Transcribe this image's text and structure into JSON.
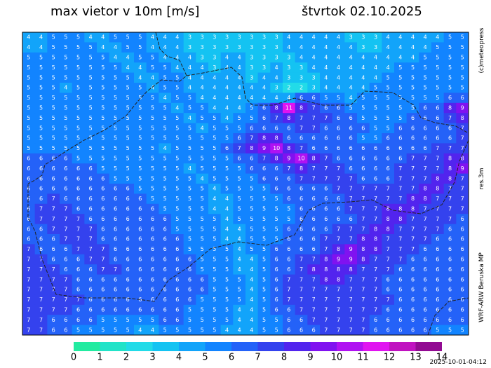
{
  "header": {
    "title": "max vietor v 10m [m/s]",
    "date": "štvrtok 02.10.2025"
  },
  "side": {
    "copyright": "(c)meteopress",
    "resolution": "res.3m",
    "model": "WRF-ARW Beruska MP"
  },
  "footer": {
    "timestamp": "2025-10-01-04:12"
  },
  "colorbar": {
    "ticks": [
      0,
      1,
      2,
      3,
      4,
      5,
      6,
      7,
      8,
      9,
      10,
      11,
      12,
      13,
      14
    ],
    "colors": [
      "#22eba0",
      "#22e3c8",
      "#22dbe8",
      "#14c3f2",
      "#12a4fa",
      "#1284ff",
      "#2462f8",
      "#3442ee",
      "#5224ee",
      "#8012f0",
      "#b012f2",
      "#e014f0",
      "#c012c0",
      "#920a92"
    ]
  },
  "grid": [
    [
      4,
      4,
      5,
      5,
      5,
      4,
      4,
      5,
      5,
      5,
      4,
      4,
      4,
      3,
      3,
      3,
      3,
      3,
      3,
      3,
      3,
      4,
      4,
      4,
      4,
      4,
      3,
      3,
      3,
      4,
      4,
      4,
      4,
      4,
      5,
      5
    ],
    [
      4,
      4,
      5,
      5,
      5,
      5,
      4,
      4,
      5,
      5,
      4,
      4,
      4,
      3,
      3,
      3,
      3,
      3,
      3,
      3,
      3,
      4,
      4,
      4,
      4,
      4,
      4,
      3,
      3,
      4,
      4,
      4,
      4,
      5,
      5,
      5
    ],
    [
      5,
      5,
      5,
      5,
      5,
      5,
      5,
      4,
      4,
      5,
      5,
      4,
      4,
      4,
      3,
      3,
      4,
      4,
      3,
      3,
      3,
      3,
      4,
      4,
      4,
      4,
      4,
      4,
      4,
      4,
      4,
      4,
      5,
      5,
      5,
      5
    ],
    [
      5,
      5,
      5,
      5,
      5,
      5,
      5,
      5,
      4,
      4,
      5,
      5,
      4,
      4,
      4,
      3,
      4,
      4,
      3,
      3,
      4,
      3,
      3,
      4,
      4,
      4,
      4,
      4,
      4,
      4,
      5,
      5,
      5,
      5,
      5,
      5
    ],
    [
      5,
      5,
      5,
      5,
      5,
      5,
      5,
      5,
      5,
      4,
      4,
      5,
      5,
      4,
      4,
      4,
      4,
      4,
      3,
      4,
      4,
      3,
      3,
      3,
      4,
      4,
      4,
      4,
      4,
      5,
      5,
      5,
      5,
      5,
      5,
      5
    ],
    [
      5,
      5,
      5,
      4,
      5,
      5,
      5,
      5,
      5,
      5,
      4,
      5,
      5,
      4,
      4,
      4,
      4,
      4,
      4,
      4,
      3,
      2,
      2,
      3,
      4,
      4,
      4,
      4,
      5,
      5,
      5,
      5,
      5,
      5,
      5,
      5
    ],
    [
      5,
      5,
      5,
      5,
      5,
      5,
      5,
      5,
      5,
      5,
      5,
      4,
      5,
      5,
      4,
      4,
      4,
      4,
      4,
      4,
      4,
      4,
      6,
      6,
      5,
      5,
      4,
      5,
      5,
      5,
      5,
      5,
      5,
      5,
      6,
      6
    ],
    [
      5,
      5,
      5,
      5,
      5,
      5,
      5,
      5,
      5,
      5,
      5,
      5,
      4,
      5,
      5,
      4,
      4,
      4,
      5,
      6,
      8,
      11,
      8,
      7,
      6,
      6,
      5,
      5,
      5,
      5,
      5,
      5,
      6,
      6,
      8,
      9
    ],
    [
      5,
      5,
      5,
      5,
      5,
      5,
      5,
      5,
      5,
      5,
      5,
      5,
      5,
      4,
      5,
      5,
      4,
      5,
      5,
      6,
      7,
      8,
      7,
      7,
      7,
      6,
      6,
      5,
      5,
      5,
      5,
      6,
      6,
      6,
      7,
      8
    ],
    [
      5,
      5,
      5,
      5,
      5,
      5,
      5,
      5,
      5,
      5,
      5,
      5,
      5,
      5,
      4,
      5,
      5,
      5,
      6,
      6,
      6,
      6,
      7,
      7,
      6,
      6,
      6,
      6,
      5,
      5,
      6,
      6,
      6,
      6,
      6,
      7
    ],
    [
      5,
      5,
      5,
      5,
      5,
      5,
      5,
      5,
      5,
      5,
      5,
      5,
      5,
      5,
      5,
      5,
      5,
      6,
      7,
      8,
      8,
      6,
      6,
      6,
      6,
      6,
      6,
      5,
      5,
      6,
      6,
      6,
      6,
      6,
      6,
      7
    ],
    [
      5,
      5,
      5,
      5,
      5,
      5,
      5,
      5,
      5,
      5,
      5,
      4,
      5,
      5,
      5,
      5,
      6,
      7,
      8,
      9,
      10,
      8,
      7,
      6,
      6,
      6,
      6,
      6,
      6,
      6,
      6,
      6,
      6,
      7,
      7,
      7
    ],
    [
      6,
      6,
      6,
      6,
      5,
      5,
      5,
      5,
      5,
      5,
      5,
      5,
      5,
      5,
      5,
      5,
      5,
      6,
      6,
      7,
      8,
      9,
      10,
      8,
      7,
      6,
      6,
      6,
      6,
      6,
      6,
      7,
      7,
      7,
      8,
      8
    ],
    [
      6,
      6,
      6,
      6,
      6,
      6,
      5,
      5,
      5,
      5,
      5,
      5,
      5,
      4,
      5,
      5,
      5,
      5,
      6,
      6,
      6,
      7,
      8,
      7,
      7,
      7,
      6,
      6,
      6,
      6,
      7,
      7,
      7,
      7,
      8,
      9
    ],
    [
      6,
      6,
      6,
      6,
      6,
      6,
      6,
      5,
      5,
      5,
      5,
      5,
      5,
      5,
      4,
      5,
      5,
      5,
      5,
      6,
      6,
      6,
      7,
      7,
      7,
      7,
      7,
      6,
      6,
      6,
      7,
      7,
      7,
      8,
      8,
      7
    ],
    [
      6,
      6,
      6,
      6,
      6,
      6,
      6,
      6,
      6,
      5,
      5,
      5,
      5,
      5,
      5,
      4,
      5,
      5,
      5,
      5,
      6,
      6,
      6,
      6,
      6,
      7,
      7,
      7,
      7,
      7,
      7,
      7,
      8,
      8,
      7,
      7
    ],
    [
      6,
      6,
      7,
      6,
      6,
      6,
      6,
      6,
      6,
      6,
      5,
      5,
      5,
      5,
      5,
      4,
      4,
      5,
      5,
      5,
      5,
      6,
      6,
      6,
      6,
      6,
      7,
      7,
      7,
      7,
      7,
      8,
      8,
      7,
      7,
      7
    ],
    [
      6,
      7,
      7,
      7,
      6,
      6,
      6,
      6,
      6,
      6,
      6,
      5,
      5,
      5,
      5,
      4,
      4,
      5,
      5,
      5,
      5,
      5,
      6,
      6,
      6,
      6,
      7,
      7,
      7,
      8,
      8,
      8,
      7,
      7,
      7,
      7
    ],
    [
      6,
      7,
      7,
      7,
      7,
      6,
      6,
      6,
      6,
      6,
      6,
      6,
      5,
      5,
      5,
      5,
      4,
      5,
      5,
      5,
      5,
      5,
      6,
      6,
      6,
      6,
      6,
      7,
      7,
      8,
      8,
      7,
      7,
      7,
      7,
      6
    ],
    [
      6,
      6,
      7,
      7,
      7,
      7,
      6,
      6,
      6,
      6,
      6,
      6,
      5,
      5,
      5,
      5,
      4,
      4,
      5,
      5,
      5,
      6,
      6,
      6,
      6,
      7,
      7,
      7,
      8,
      8,
      7,
      7,
      7,
      7,
      6,
      6
    ],
    [
      6,
      6,
      6,
      7,
      7,
      7,
      6,
      6,
      6,
      6,
      6,
      6,
      6,
      5,
      5,
      5,
      4,
      4,
      5,
      5,
      5,
      6,
      6,
      6,
      7,
      7,
      7,
      8,
      8,
      7,
      7,
      7,
      7,
      6,
      6,
      6
    ],
    [
      7,
      6,
      6,
      6,
      7,
      7,
      7,
      6,
      6,
      6,
      6,
      6,
      6,
      5,
      5,
      5,
      5,
      4,
      5,
      5,
      6,
      6,
      6,
      6,
      7,
      8,
      9,
      8,
      8,
      7,
      7,
      7,
      6,
      6,
      6,
      6
    ],
    [
      7,
      7,
      6,
      6,
      6,
      7,
      7,
      6,
      6,
      6,
      6,
      6,
      6,
      6,
      5,
      5,
      5,
      4,
      4,
      5,
      6,
      6,
      7,
      7,
      8,
      9,
      9,
      8,
      7,
      7,
      7,
      6,
      6,
      6,
      6,
      6
    ],
    [
      7,
      7,
      7,
      6,
      6,
      6,
      7,
      7,
      6,
      6,
      6,
      6,
      6,
      6,
      5,
      5,
      5,
      4,
      4,
      5,
      6,
      6,
      7,
      8,
      8,
      8,
      8,
      7,
      7,
      7,
      6,
      6,
      6,
      6,
      6,
      6
    ],
    [
      7,
      7,
      7,
      7,
      6,
      6,
      6,
      6,
      6,
      6,
      6,
      6,
      6,
      6,
      6,
      5,
      5,
      5,
      4,
      5,
      6,
      7,
      7,
      7,
      8,
      8,
      7,
      7,
      7,
      6,
      6,
      6,
      6,
      6,
      6,
      6
    ],
    [
      7,
      7,
      7,
      7,
      6,
      6,
      6,
      6,
      6,
      6,
      6,
      6,
      6,
      6,
      6,
      5,
      5,
      5,
      4,
      5,
      6,
      7,
      7,
      7,
      7,
      7,
      7,
      7,
      7,
      6,
      6,
      6,
      6,
      6,
      6,
      6
    ],
    [
      7,
      7,
      7,
      7,
      7,
      6,
      6,
      6,
      6,
      6,
      6,
      6,
      6,
      6,
      5,
      5,
      5,
      5,
      4,
      5,
      6,
      7,
      7,
      7,
      7,
      7,
      7,
      7,
      7,
      7,
      6,
      6,
      6,
      6,
      6,
      6
    ],
    [
      7,
      7,
      7,
      7,
      6,
      6,
      6,
      6,
      6,
      6,
      6,
      6,
      6,
      5,
      5,
      5,
      5,
      4,
      4,
      5,
      6,
      6,
      7,
      7,
      7,
      7,
      7,
      7,
      7,
      6,
      6,
      6,
      6,
      6,
      6,
      6
    ],
    [
      7,
      7,
      6,
      6,
      6,
      6,
      5,
      5,
      5,
      5,
      5,
      6,
      6,
      5,
      5,
      5,
      5,
      4,
      4,
      5,
      5,
      6,
      6,
      7,
      7,
      7,
      7,
      7,
      6,
      6,
      6,
      6,
      6,
      6,
      6,
      6
    ],
    [
      7,
      7,
      6,
      6,
      5,
      5,
      5,
      5,
      5,
      4,
      4,
      5,
      5,
      5,
      5,
      5,
      4,
      4,
      4,
      5,
      5,
      6,
      6,
      6,
      7,
      7,
      7,
      7,
      6,
      6,
      6,
      6,
      6,
      5,
      5,
      5
    ]
  ]
}
